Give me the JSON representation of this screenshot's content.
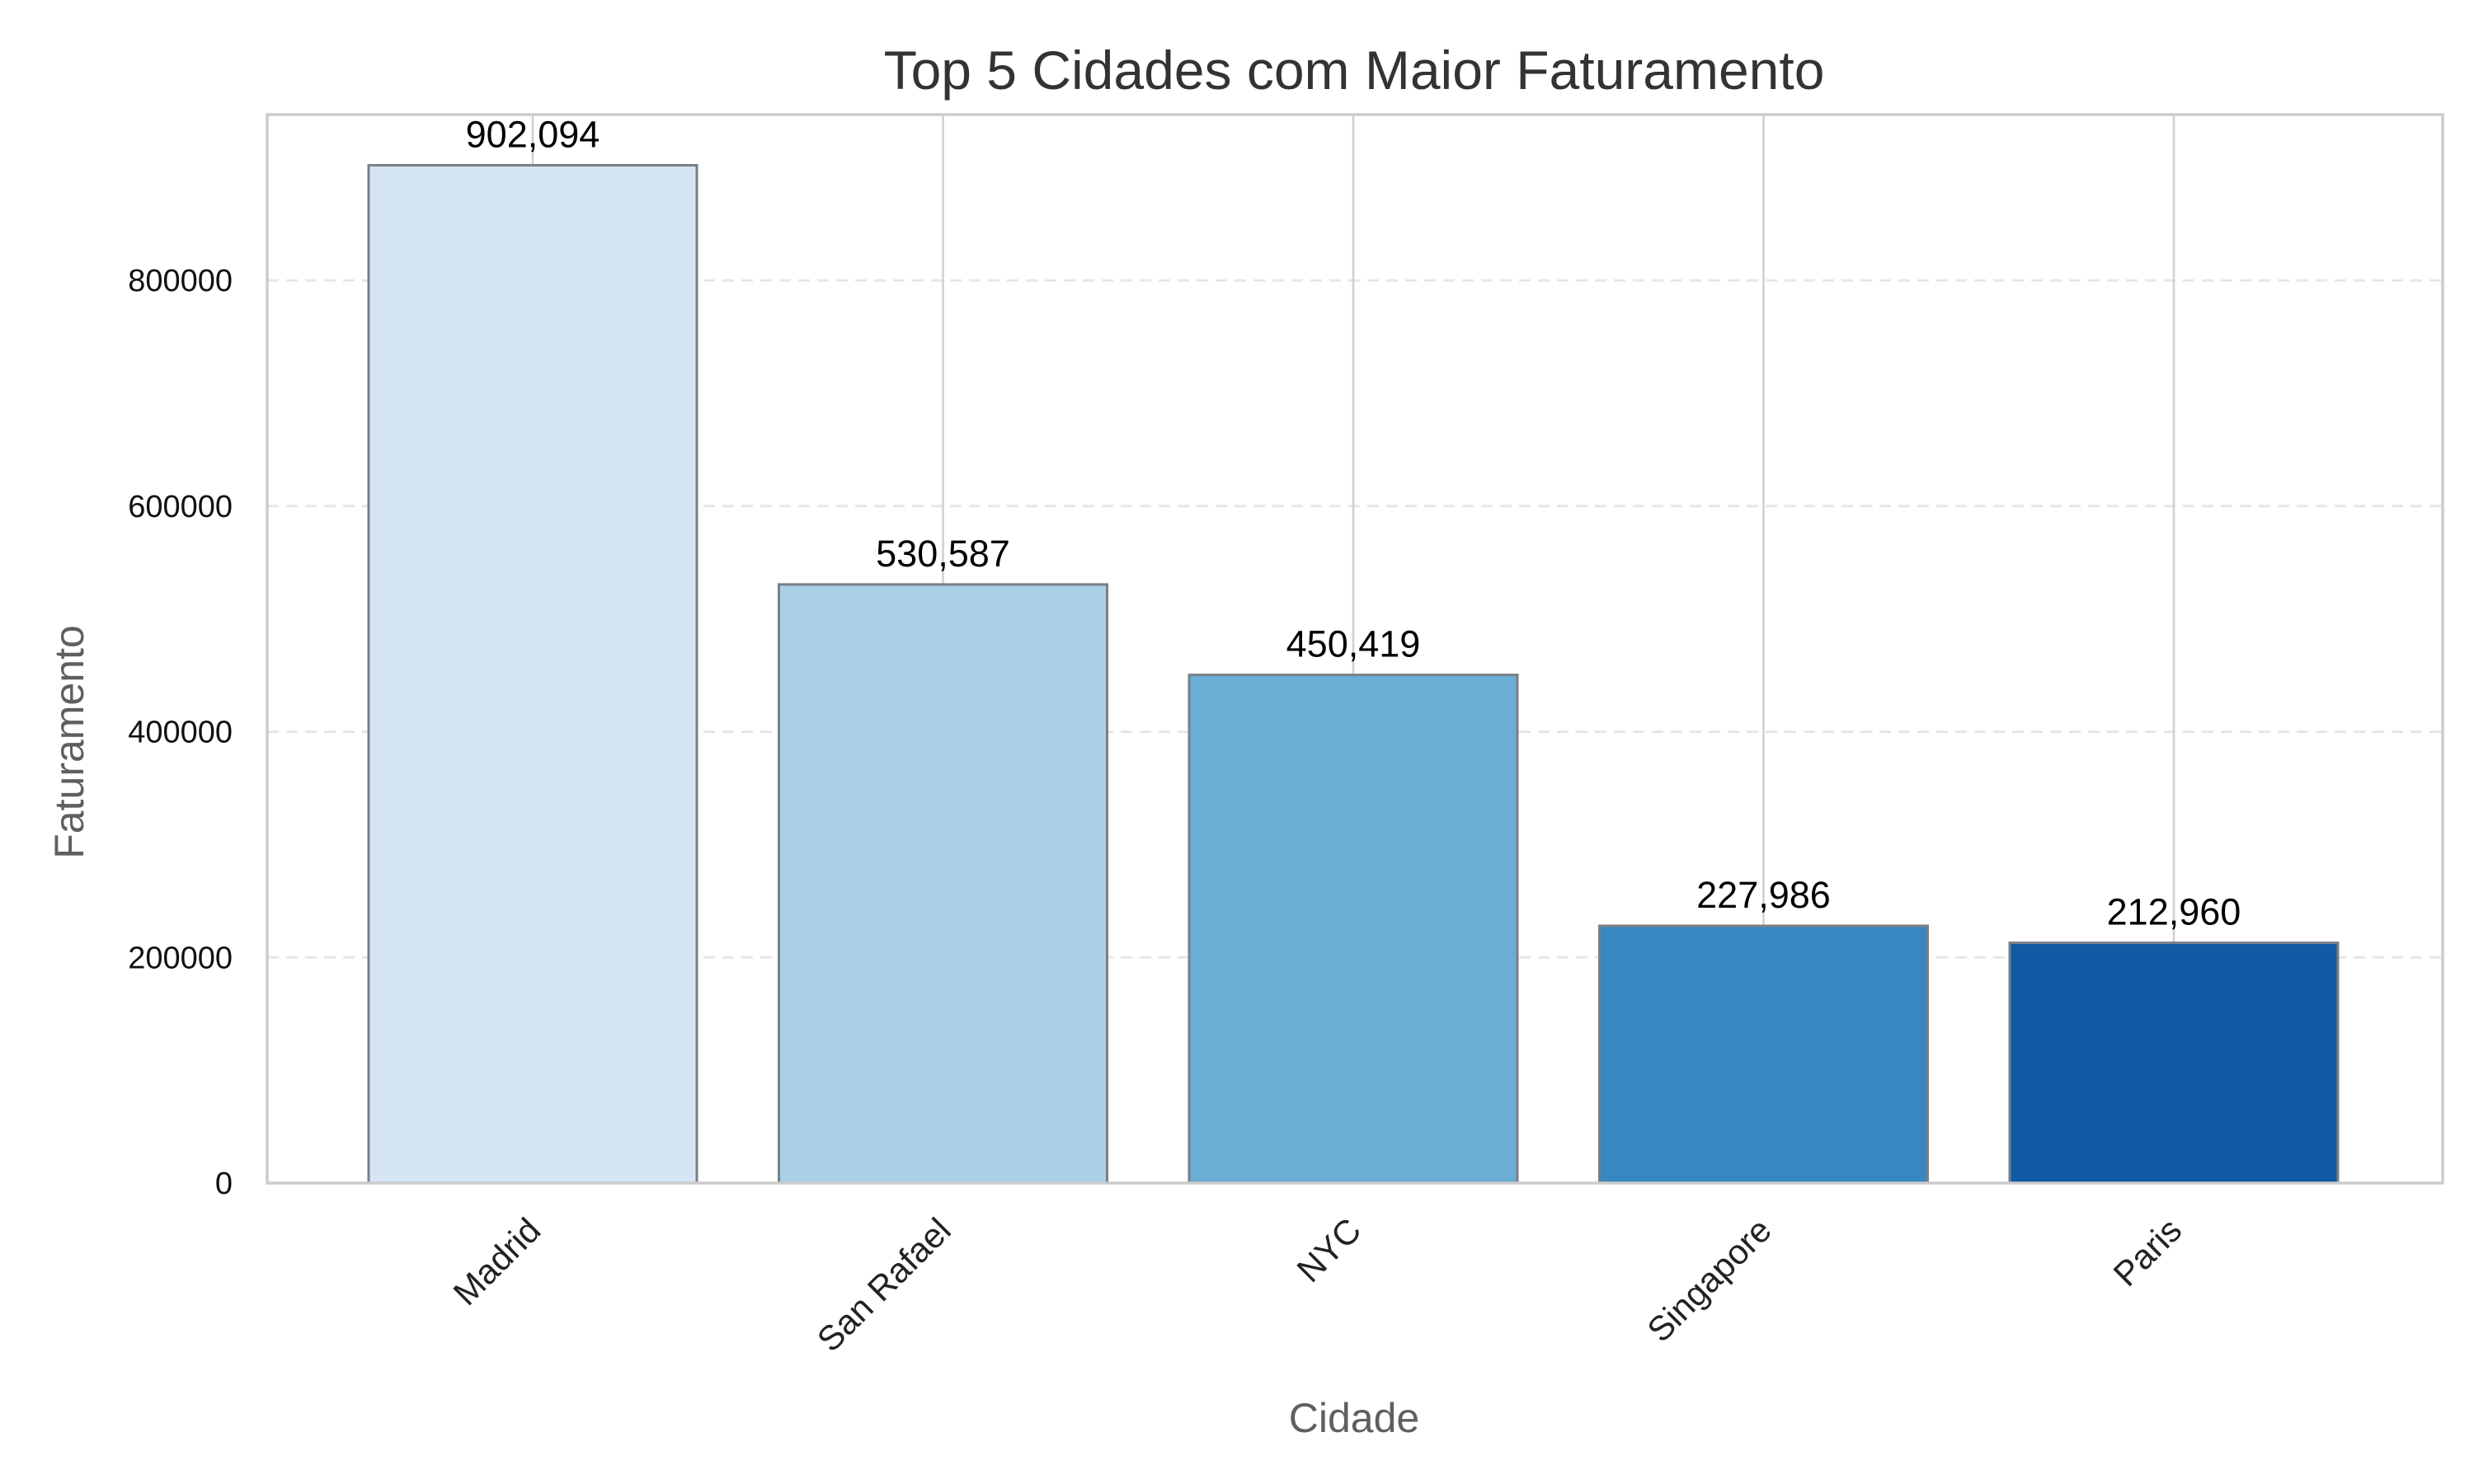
{
  "chart_data": {
    "type": "bar",
    "title": "Top 5 Cidades com Maior Faturamento",
    "xlabel": "Cidade",
    "ylabel": "Faturamento",
    "categories": [
      "Madrid",
      "San Rafael",
      "NYC",
      "Singapore",
      "Paris"
    ],
    "values": [
      902094,
      530587,
      450419,
      227986,
      212960
    ],
    "value_labels": [
      "902,094",
      "530,587",
      "450,419",
      "227,986",
      "212,960"
    ],
    "colors": [
      "#d6e5f4",
      "#abcfe5",
      "#6aadd5",
      "#3787c0",
      "#105ba4"
    ],
    "edge_color": "#7a7f86",
    "ylim": [
      0,
      947000
    ],
    "yticks": [
      0,
      200000,
      400000,
      600000,
      800000
    ],
    "ytick_labels": [
      "0",
      "200000",
      "400000",
      "600000",
      "800000"
    ],
    "grid": true,
    "grid_color": "#e6e6e6",
    "spine_color": "#cccccc"
  }
}
